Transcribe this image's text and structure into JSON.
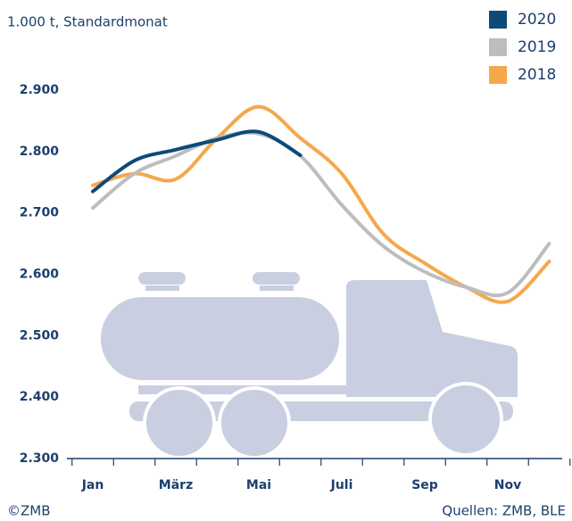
{
  "chart_data": {
    "type": "line",
    "subtitle": "1.000 t, Standardmonat",
    "categories": [
      "Jan",
      null,
      "März",
      null,
      "Mai",
      null,
      "Juli",
      null,
      "Sep",
      null,
      "Nov",
      null
    ],
    "series": [
      {
        "name": "2020",
        "color": "#0d4a78",
        "values": [
          2735,
          2785,
          2803,
          2819,
          2832,
          2794,
          null,
          null,
          null,
          null,
          null,
          null
        ]
      },
      {
        "name": "2019",
        "color": "#bdbdbd",
        "values": [
          2708,
          2764,
          2793,
          2822,
          2829,
          2793,
          2713,
          2646,
          2604,
          2579,
          2570,
          2650
        ]
      },
      {
        "name": "2018",
        "color": "#f5a84a",
        "values": [
          2745,
          2764,
          2755,
          2822,
          2873,
          2822,
          2764,
          2666,
          2618,
          2579,
          2556,
          2621
        ]
      }
    ],
    "ylim": [
      2300,
      2900
    ],
    "yticks": [
      {
        "value": 2300,
        "label": "2.300"
      },
      {
        "value": 2400,
        "label": "2.400"
      },
      {
        "value": 2500,
        "label": "2.500"
      },
      {
        "value": 2600,
        "label": "2.600"
      },
      {
        "value": 2700,
        "label": "2.700"
      },
      {
        "value": 2800,
        "label": "2.800"
      },
      {
        "value": 2900,
        "label": "2.900"
      }
    ],
    "legend": "top-right",
    "footer_left": "©ZMB",
    "footer_right": "Quellen: ZMB, BLE"
  }
}
